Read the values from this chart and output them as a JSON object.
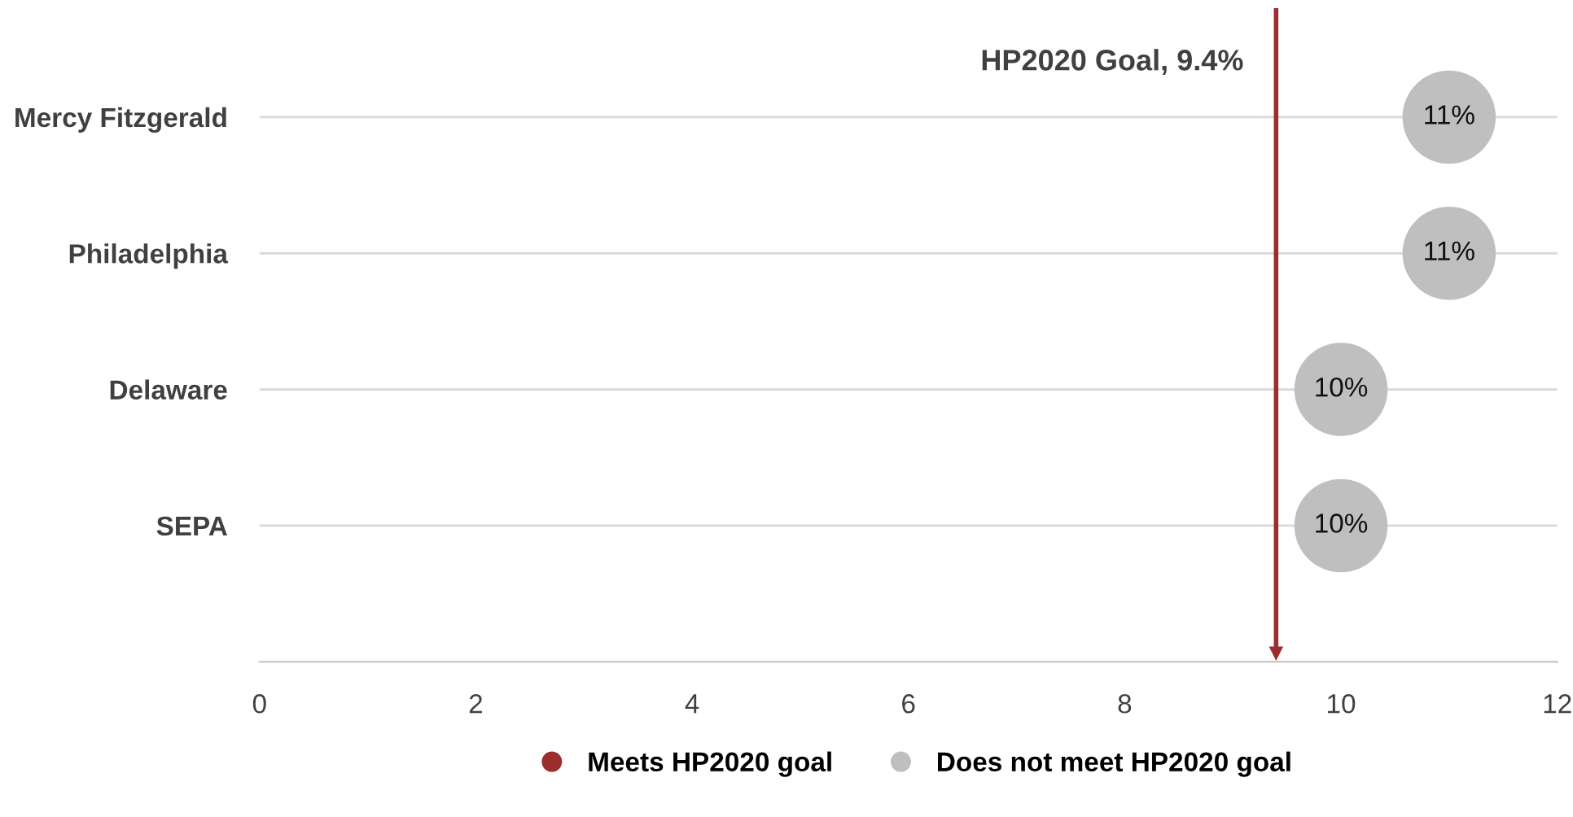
{
  "chart_data": {
    "type": "scatter",
    "orientation": "horizontal",
    "categories": [
      "Mercy Fitzgerald",
      "Philadelphia",
      "Delaware",
      "SEPA"
    ],
    "series": [
      {
        "name": "Meets HP2020 goal",
        "color": "#9b2d2d",
        "values": [
          null,
          null,
          null,
          null
        ]
      },
      {
        "name": "Does not meet HP2020 goal",
        "color": "#bfbfbf",
        "values": [
          11,
          11,
          10,
          10
        ],
        "value_labels": [
          "11%",
          "11%",
          "10%",
          "10%"
        ]
      }
    ],
    "xlim": [
      0,
      12
    ],
    "xticks": [
      0,
      2,
      4,
      6,
      8,
      10,
      12
    ],
    "ref_lines": [
      {
        "axis": "x",
        "value": 9.4,
        "label": "HP2020 Goal, 9.4%",
        "color": "#9b2d2d"
      }
    ],
    "grid": "y",
    "legend": "bottom",
    "marker": "circle"
  }
}
